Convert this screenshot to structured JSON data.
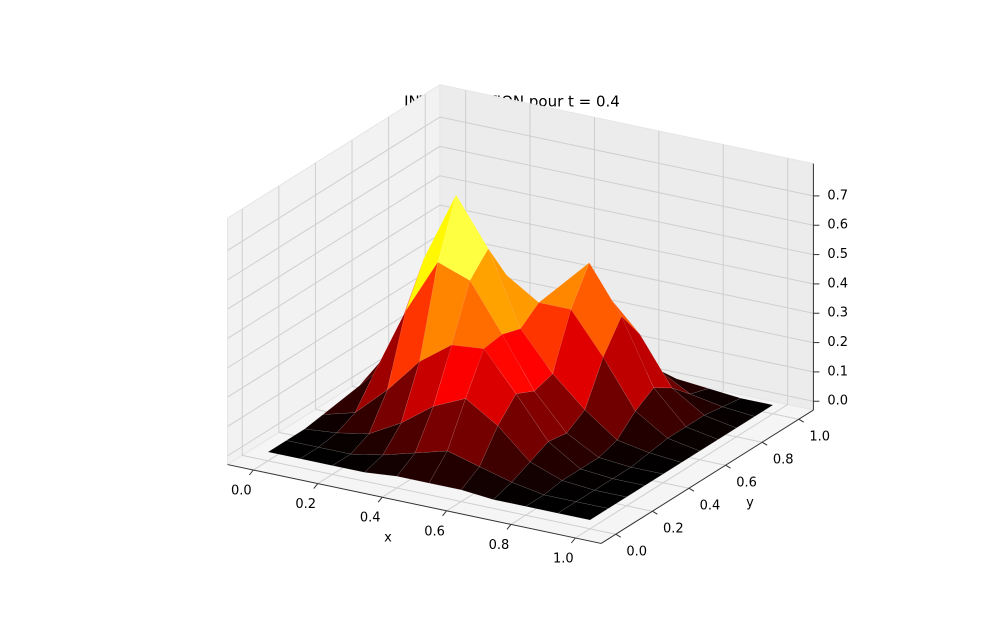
{
  "chart_data": {
    "type": "surface",
    "title": "INTERPOLATION pour t = 0.4",
    "xlabel": "x",
    "ylabel": "y",
    "colormap": "hot",
    "x": [
      0,
      0.1,
      0.2,
      0.3,
      0.4,
      0.5,
      0.6,
      0.7,
      0.8,
      0.9,
      1
    ],
    "y": [
      0,
      0.1,
      0.2,
      0.3,
      0.4,
      0.5,
      0.6,
      0.7,
      0.8,
      0.9,
      1
    ],
    "z": [
      [
        0,
        0,
        0,
        0.01,
        0.02,
        0.03,
        0.02,
        0.01,
        0,
        0,
        0
      ],
      [
        0,
        0,
        0.01,
        0.04,
        0.13,
        0.18,
        0.13,
        0.04,
        0.01,
        0,
        0
      ],
      [
        0,
        0,
        0.03,
        0.14,
        0.37,
        0.51,
        0.36,
        0.13,
        0.02,
        0,
        0
      ],
      [
        0,
        0.02,
        0.09,
        0.26,
        0.56,
        0.75,
        0.53,
        0.2,
        0.05,
        0.01,
        0
      ],
      [
        0.01,
        0.05,
        0.17,
        0.34,
        0.52,
        0.59,
        0.46,
        0.25,
        0.11,
        0.03,
        0.01
      ],
      [
        0.01,
        0.08,
        0.22,
        0.35,
        0.36,
        0.34,
        0.39,
        0.4,
        0.26,
        0.09,
        0.02
      ],
      [
        0.01,
        0.05,
        0.15,
        0.22,
        0.19,
        0.21,
        0.39,
        0.51,
        0.36,
        0.13,
        0.02
      ],
      [
        0,
        0.02,
        0.05,
        0.08,
        0.07,
        0.11,
        0.25,
        0.35,
        0.25,
        0.09,
        0.02
      ],
      [
        0,
        0,
        0.01,
        0.01,
        0.01,
        0.03,
        0.09,
        0.13,
        0.09,
        0.03,
        0.01
      ],
      [
        0,
        0,
        0,
        0,
        0,
        0.01,
        0.02,
        0.02,
        0.02,
        0.01,
        0
      ],
      [
        0,
        0,
        0,
        0,
        0,
        0,
        0,
        0,
        0,
        0,
        0
      ]
    ],
    "xlim": [
      0,
      1
    ],
    "ylim": [
      0,
      1
    ],
    "zlim": [
      0,
      0.75
    ],
    "xticks": [
      {
        "value": 0,
        "label": "0.0"
      },
      0.2,
      0.4,
      0.6,
      0.8,
      {
        "value": 1,
        "label": "1.0"
      }
    ],
    "yticks": [
      {
        "value": 0,
        "label": "0.0"
      },
      0.2,
      0.4,
      0.6,
      0.8,
      {
        "value": 1,
        "label": "1.0"
      }
    ],
    "zticks": [
      {
        "value": 0,
        "label": "0.0"
      },
      0.1,
      0.2,
      0.3,
      0.4,
      0.5,
      0.6,
      0.7
    ],
    "grid": true
  }
}
